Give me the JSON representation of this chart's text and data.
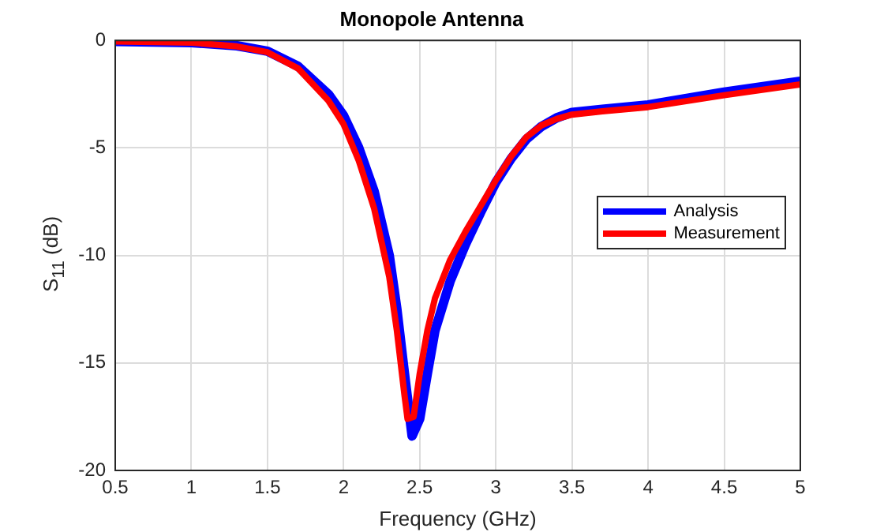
{
  "chart_data": {
    "type": "line",
    "title": "Monopole Antenna",
    "xlabel": "Frequency (GHz)",
    "ylabel": "S$_{11}$ (dB)",
    "xlim": [
      0.5,
      5
    ],
    "xticks": [
      0.5,
      1,
      1.5,
      2,
      2.5,
      3,
      3.5,
      4,
      4.5,
      5
    ],
    "ylim": [
      -20,
      0
    ],
    "yticks": [
      -20,
      -15,
      -10,
      -5,
      0
    ],
    "grid": true,
    "legend": "right",
    "marker": "none",
    "line_style": "solid",
    "series": [
      {
        "name": "Analysis",
        "color": "#0000ff",
        "x": [
          0.5,
          1.0,
          1.3,
          1.5,
          1.7,
          1.9,
          2.0,
          2.1,
          2.2,
          2.3,
          2.35,
          2.4,
          2.45,
          2.5,
          2.55,
          2.6,
          2.7,
          2.8,
          2.9,
          3.0,
          3.1,
          3.2,
          3.3,
          3.4,
          3.5,
          3.7,
          4.0,
          4.5,
          5.0
        ],
        "values": [
          -0.05,
          -0.1,
          -0.25,
          -0.5,
          -1.2,
          -2.5,
          -3.5,
          -5.0,
          -7.0,
          -10,
          -12.5,
          -15.5,
          -18.4,
          -17.6,
          -15.5,
          -13.5,
          -11.2,
          -9.5,
          -8.0,
          -6.6,
          -5.5,
          -4.6,
          -4.0,
          -3.6,
          -3.35,
          -3.2,
          -3.0,
          -2.4,
          -1.9
        ]
      },
      {
        "name": "Measurement",
        "color": "#ff0000",
        "x": [
          0.5,
          1.0,
          1.3,
          1.5,
          1.7,
          1.9,
          2.0,
          2.1,
          2.2,
          2.3,
          2.35,
          2.4,
          2.42,
          2.46,
          2.5,
          2.55,
          2.6,
          2.7,
          2.8,
          2.9,
          3.0,
          3.1,
          3.2,
          3.3,
          3.4,
          3.5,
          3.7,
          4.0,
          4.5,
          5.0
        ],
        "values": [
          -0.05,
          -0.1,
          -0.28,
          -0.55,
          -1.3,
          -2.8,
          -3.9,
          -5.6,
          -7.8,
          -11,
          -13.5,
          -16.5,
          -17.6,
          -17.5,
          -15.5,
          -13.5,
          -12.0,
          -10.2,
          -8.9,
          -7.7,
          -6.5,
          -5.4,
          -4.5,
          -3.95,
          -3.65,
          -3.45,
          -3.3,
          -3.1,
          -2.55,
          -2.05
        ]
      }
    ]
  }
}
